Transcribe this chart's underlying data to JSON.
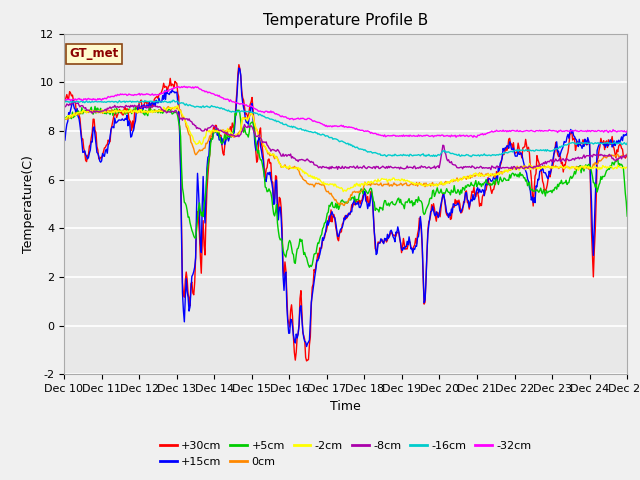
{
  "title": "Temperature Profile B",
  "xlabel": "Time",
  "ylabel": "Temperature(C)",
  "ylim": [
    -2,
    12
  ],
  "xlim": [
    0,
    15
  ],
  "yticks": [
    -2,
    0,
    2,
    4,
    6,
    8,
    10,
    12
  ],
  "xtick_labels": [
    "Dec 10",
    "Dec 11",
    "Dec 12",
    "Dec 13",
    "Dec 14",
    "Dec 15",
    "Dec 16",
    "Dec 17",
    "Dec 18",
    "Dec 19",
    "Dec 20",
    "Dec 21",
    "Dec 22",
    "Dec 23",
    "Dec 24",
    "Dec 25"
  ],
  "legend_label": "GT_met",
  "series_labels": [
    "+30cm",
    "+15cm",
    "+5cm",
    "0cm",
    "-2cm",
    "-8cm",
    "-16cm",
    "-32cm"
  ],
  "series_colors": [
    "#ff0000",
    "#0000ff",
    "#00cc00",
    "#ff8800",
    "#ffff00",
    "#aa00aa",
    "#00cccc",
    "#ff00ff"
  ],
  "fig_facecolor": "#f0f0f0",
  "ax_facecolor": "#e8e8e8",
  "title_fontsize": 11,
  "axis_fontsize": 9,
  "tick_fontsize": 8
}
